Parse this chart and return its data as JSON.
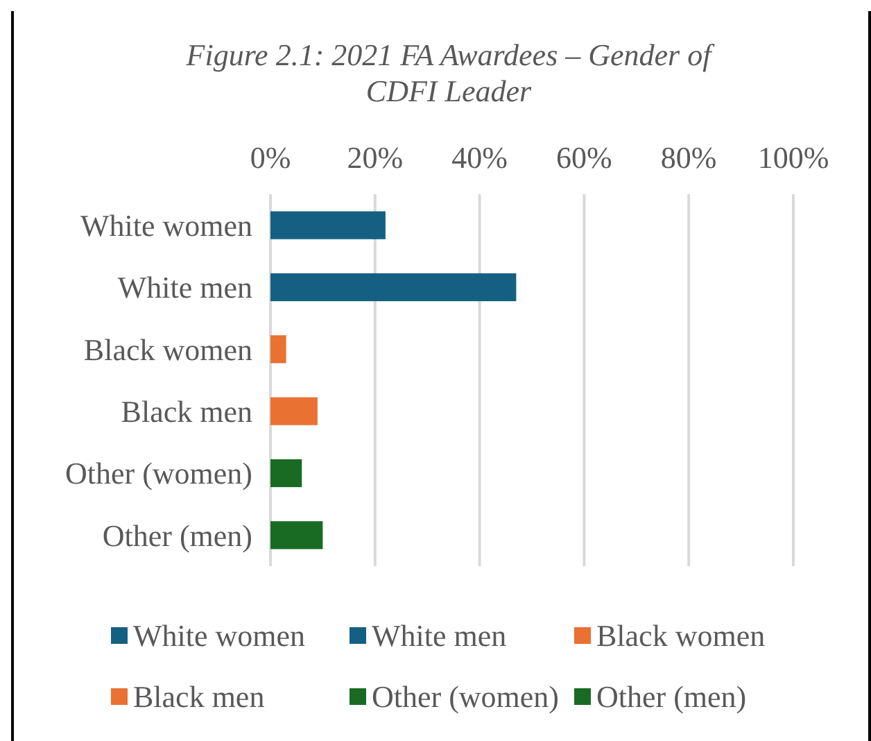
{
  "chart_data": {
    "type": "bar",
    "orientation": "horizontal",
    "title": "Figure 2.1: 2021 FA Awardees – Gender of CDFI Leader",
    "categories": [
      "White women",
      "White men",
      "Black women",
      "Black men",
      "Other (women)",
      "Other (men)"
    ],
    "series": [
      {
        "name": "White women",
        "color": "#156082",
        "values": [
          22,
          null,
          null,
          null,
          null,
          null
        ]
      },
      {
        "name": "White men",
        "color": "#156082",
        "values": [
          null,
          47,
          null,
          null,
          null,
          null
        ]
      },
      {
        "name": "Black women",
        "color": "#e97132",
        "values": [
          null,
          null,
          3,
          null,
          null,
          null
        ]
      },
      {
        "name": "Black men",
        "color": "#e97132",
        "values": [
          null,
          null,
          null,
          9,
          null,
          null
        ]
      },
      {
        "name": "Other (women)",
        "color": "#196b24",
        "values": [
          null,
          null,
          null,
          null,
          6,
          null
        ]
      },
      {
        "name": "Other (men)",
        "color": "#196b24",
        "values": [
          null,
          null,
          null,
          null,
          null,
          10
        ]
      }
    ],
    "xlim": [
      0,
      100
    ],
    "xticks": [
      {
        "value": 0,
        "label": "0%"
      },
      {
        "value": 20,
        "label": "20%"
      },
      {
        "value": 40,
        "label": "40%"
      },
      {
        "value": 60,
        "label": "60%"
      },
      {
        "value": 80,
        "label": "80%"
      },
      {
        "value": 100,
        "label": "100%"
      }
    ],
    "grid": "x",
    "legend": "bottom"
  }
}
